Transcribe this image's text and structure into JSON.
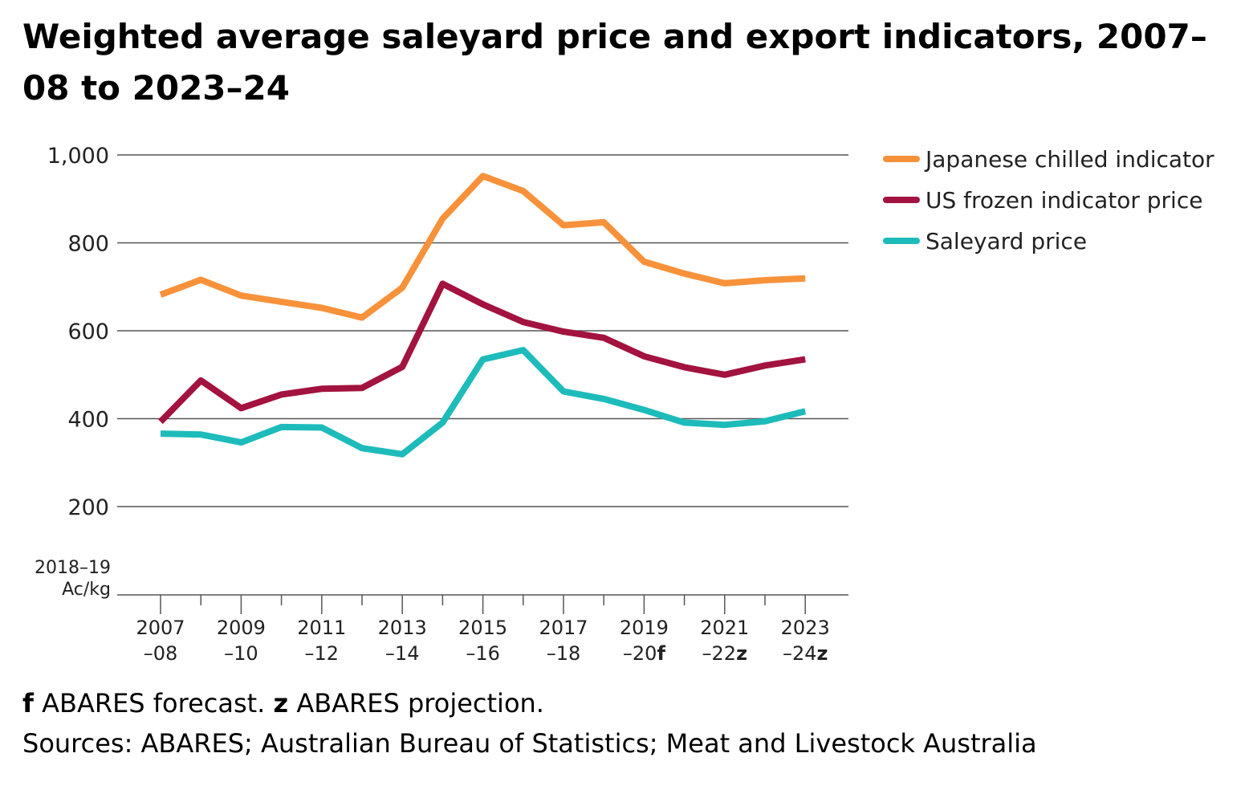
{
  "chart_data": {
    "type": "line",
    "title": "Weighted average saleyard price and export indicators, 2007–08 to 2023–24",
    "ylabel_line1": "2018–19",
    "ylabel_line2": "Ac/kg",
    "ylim": [
      0,
      1000
    ],
    "yticks": [
      {
        "value": 200,
        "label": "200"
      },
      {
        "value": 400,
        "label": "400"
      },
      {
        "value": 600,
        "label": "600"
      },
      {
        "value": 800,
        "label": "800"
      },
      {
        "value": 1000,
        "label": "1,000"
      }
    ],
    "categories": [
      "2007–08",
      "2008–09",
      "2009–10",
      "2010–11",
      "2011–12",
      "2012–13",
      "2013–14",
      "2014–15",
      "2015–16",
      "2016–17",
      "2017–18",
      "2018–19",
      "2019–20",
      "2020–21",
      "2021–22",
      "2022–23",
      "2023–24"
    ],
    "x_labels": [
      {
        "index": 0,
        "line1": "2007",
        "line2": "–08",
        "suffix": ""
      },
      {
        "index": 2,
        "line1": "2009",
        "line2": "–10",
        "suffix": ""
      },
      {
        "index": 4,
        "line1": "2011",
        "line2": "–12",
        "suffix": ""
      },
      {
        "index": 6,
        "line1": "2013",
        "line2": "–14",
        "suffix": ""
      },
      {
        "index": 8,
        "line1": "2015",
        "line2": "–16",
        "suffix": ""
      },
      {
        "index": 10,
        "line1": "2017",
        "line2": "–18",
        "suffix": ""
      },
      {
        "index": 12,
        "line1": "2019",
        "line2": "–20",
        "suffix": "f"
      },
      {
        "index": 14,
        "line1": "2021",
        "line2": "–22",
        "suffix": "z"
      },
      {
        "index": 16,
        "line1": "2023",
        "line2": "–24",
        "suffix": "z"
      }
    ],
    "series": [
      {
        "name": "Japanese chilled indicator",
        "color": "#F7923A",
        "values": [
          682,
          716,
          680,
          666,
          652,
          630,
          698,
          855,
          952,
          918,
          840,
          847,
          757,
          730,
          708,
          715,
          719
        ]
      },
      {
        "name": "US frozen indicator price",
        "color": "#A3133F",
        "values": [
          393,
          487,
          424,
          455,
          468,
          470,
          518,
          707,
          660,
          620,
          598,
          584,
          542,
          517,
          500,
          521,
          535
        ]
      },
      {
        "name": "Saleyard price",
        "color": "#1EBBBB",
        "values": [
          366,
          364,
          346,
          381,
          380,
          333,
          319,
          391,
          535,
          556,
          462,
          445,
          420,
          391,
          386,
          394,
          417
        ]
      }
    ],
    "legend_position": "right",
    "grid": true
  },
  "footnotes": {
    "f_marker": "f",
    "f_text": " ABARES forecast. ",
    "z_marker": "z",
    "z_text": " ABARES projection.",
    "sources": "Sources: ABARES; Australian Bureau of Statistics; Meat and Livestock Australia"
  }
}
